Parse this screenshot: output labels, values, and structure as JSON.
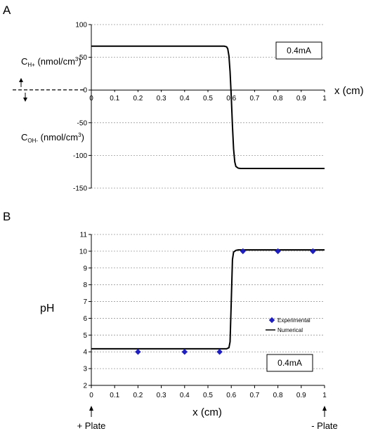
{
  "chart_data": [
    {
      "type": "line",
      "panel_letter": "A",
      "xlabel": "x (cm)",
      "ylabel_upper": {
        "main": "C",
        "sub": "H+",
        "rest": " (nmol/cm",
        "sup": "3",
        "close": ")"
      },
      "ylabel_lower": {
        "main": "C",
        "sub": "OH-",
        "rest": " (nmol/cm",
        "sup": "3",
        "close": ")"
      },
      "annotation": "0.4mA",
      "xlim": [
        0,
        1
      ],
      "ylim": [
        -150,
        100
      ],
      "x_ticks": [
        0,
        0.1,
        0.2,
        0.3,
        0.4,
        0.5,
        0.6,
        0.7,
        0.8,
        0.9,
        1
      ],
      "x_tick_labels": [
        "0",
        "0.1",
        "0.2",
        "0.3",
        "0.4",
        "0.5",
        "0.6",
        "0.7",
        "0.8",
        "0.9",
        "1"
      ],
      "y_ticks": [
        100,
        50,
        0,
        -50,
        -100,
        -150
      ],
      "y_tick_labels": [
        "100",
        "50",
        "0",
        "-50",
        "-100",
        "-150"
      ],
      "grid": "horizontal dashed",
      "series": [
        {
          "color": "#000000",
          "x": [
            0,
            0.57,
            0.58,
            0.585,
            0.59,
            0.595,
            0.6,
            0.605,
            0.61,
            0.615,
            0.62,
            0.63,
            0.64,
            0.66,
            0.7,
            1
          ],
          "y": [
            67,
            67,
            66,
            63,
            52,
            28,
            -10,
            -55,
            -90,
            -110,
            -117,
            -119.5,
            -120,
            -120,
            -120,
            -120
          ]
        }
      ]
    },
    {
      "type": "line",
      "panel_letter": "B",
      "xlabel": "x (cm)",
      "ylabel": "pH",
      "annotation": "0.4mA",
      "xlim": [
        0,
        1
      ],
      "ylim": [
        2,
        11
      ],
      "x_ticks": [
        0,
        0.1,
        0.2,
        0.3,
        0.4,
        0.5,
        0.6,
        0.7,
        0.8,
        0.9,
        1
      ],
      "x_tick_labels": [
        "0",
        "0.1",
        "0.2",
        "0.3",
        "0.4",
        "0.5",
        "0.6",
        "0.7",
        "0.8",
        "0.9",
        "1"
      ],
      "y_ticks": [
        2,
        3,
        4,
        5,
        6,
        7,
        8,
        9,
        10,
        11
      ],
      "y_tick_labels": [
        "2",
        "3",
        "4",
        "5",
        "6",
        "7",
        "8",
        "9",
        "10",
        "11"
      ],
      "grid": "horizontal dashed",
      "legend_position": "center-right",
      "series": [
        {
          "name": "Experimental",
          "type": "scatter",
          "color": "#1f1fbf",
          "x": [
            0.2,
            0.4,
            0.55,
            0.65,
            0.8,
            0.95
          ],
          "y": [
            4.0,
            4.0,
            4.0,
            10.0,
            10.0,
            10.0
          ]
        },
        {
          "name": "Numerical",
          "type": "line",
          "color": "#000000",
          "x": [
            0,
            0.58,
            0.59,
            0.595,
            0.6,
            0.605,
            0.61,
            0.62,
            0.63,
            1
          ],
          "y": [
            4.18,
            4.18,
            4.25,
            4.6,
            7.0,
            9.5,
            9.95,
            10.05,
            10.08,
            10.08
          ]
        }
      ],
      "bottom_labels": {
        "left": "+ Plate",
        "right": "- Plate"
      }
    }
  ]
}
